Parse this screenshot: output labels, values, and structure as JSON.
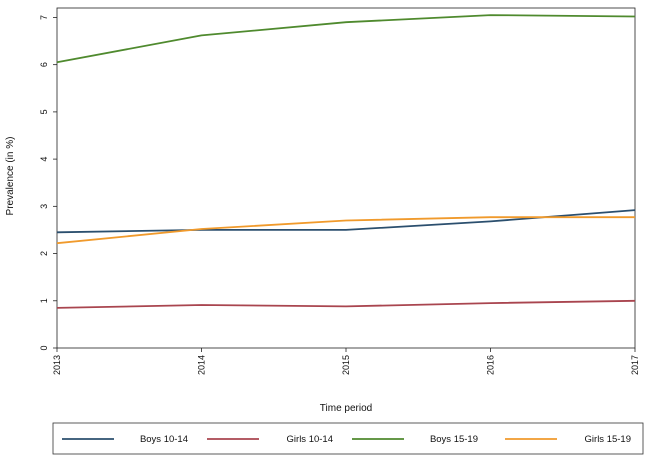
{
  "chart_data": {
    "type": "line",
    "title": "",
    "xlabel": "Time period",
    "ylabel": "Prevalence (in %)",
    "x": [
      2013,
      2014,
      2015,
      2016,
      2017
    ],
    "x_tick_labels": [
      "2013",
      "2014",
      "2015",
      "2016",
      "2017"
    ],
    "y_ticks": [
      0,
      1,
      2,
      3,
      4,
      5,
      6,
      7
    ],
    "y_tick_labels": [
      "0",
      "1",
      "2",
      "3",
      "4",
      "5",
      "6",
      "7"
    ],
    "xlim": [
      2013,
      2017
    ],
    "ylim": [
      0,
      7.2
    ],
    "grid": false,
    "legend_placement": "bottom",
    "series": [
      {
        "name": "Boys 10-14",
        "color": "#2b4f6e",
        "values": [
          2.45,
          2.5,
          2.5,
          2.68,
          2.92
        ]
      },
      {
        "name": "Girls 10-14",
        "color": "#a9454f",
        "values": [
          0.85,
          0.91,
          0.88,
          0.95,
          1.0
        ]
      },
      {
        "name": "Boys 15-19",
        "color": "#4f8a2e",
        "values": [
          6.05,
          6.62,
          6.9,
          7.05,
          7.02
        ]
      },
      {
        "name": "Girls 15-19",
        "color": "#f09a2c",
        "values": [
          2.22,
          2.52,
          2.7,
          2.77,
          2.77
        ]
      }
    ]
  }
}
